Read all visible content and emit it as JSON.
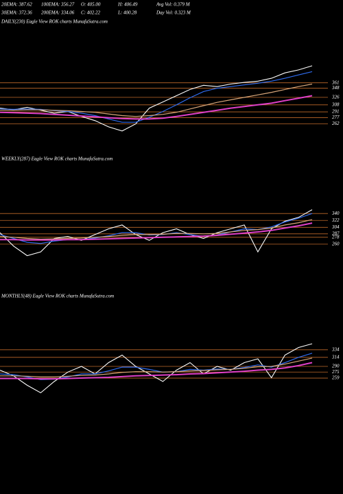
{
  "header": {
    "stats": [
      [
        "20EMA: 387.62",
        "100EMA: 356.27",
        "O: 405.00",
        "H: 406.49",
        "Avg Vol: 0.379 M"
      ],
      [
        "30EMA: 372.36",
        "200EMA: 334.06",
        "C: 402.22",
        "L: 400.28",
        "Day Vol: 0.323 M"
      ]
    ]
  },
  "chart_data": [
    {
      "type": "line",
      "title": "DAILY(230) Eagle  View  ROK charts MunafaSutra.com",
      "ylim": [
        230,
        420
      ],
      "yticks": [
        361,
        348,
        326,
        308,
        291,
        277,
        262
      ],
      "tick_color": "#c06a2a",
      "series": [
        {
          "color": "#ffffff",
          "values": [
            300,
            296,
            302,
            295,
            288,
            292,
            280,
            270,
            255,
            245,
            262,
            300,
            315,
            330,
            345,
            355,
            352,
            358,
            362,
            365,
            372,
            385,
            392,
            402
          ]
        },
        {
          "color": "#2f6cf0",
          "values": [
            298,
            297,
            298,
            297,
            294,
            292,
            288,
            282,
            274,
            266,
            266,
            278,
            292,
            308,
            325,
            340,
            348,
            352,
            356,
            360,
            365,
            372,
            380,
            388
          ]
        },
        {
          "color": "#d9a77a",
          "values": [
            295,
            295,
            296,
            296,
            295,
            294,
            292,
            290,
            286,
            282,
            280,
            282,
            285,
            290,
            298,
            306,
            314,
            320,
            326,
            332,
            338,
            345,
            352,
            358
          ]
        },
        {
          "color": "#e040c8",
          "values": [
            290,
            289,
            288,
            287,
            285,
            283,
            281,
            279,
            277,
            275,
            274,
            274,
            276,
            280,
            285,
            290,
            295,
            300,
            304,
            308,
            312,
            318,
            324,
            330
          ]
        }
      ]
    },
    {
      "type": "line",
      "title": "WEEKLY(287) Eagle  View  ROK charts MunafaSutra.com",
      "ylim": [
        190,
        360
      ],
      "yticks": [
        340,
        322,
        304,
        287,
        278,
        260
      ],
      "tick_color": "#c06a2a",
      "series": [
        {
          "color": "#ffffff",
          "values": [
            290,
            255,
            230,
            240,
            275,
            280,
            270,
            285,
            300,
            310,
            285,
            270,
            290,
            300,
            285,
            275,
            290,
            300,
            310,
            240,
            300,
            320,
            330,
            350
          ]
        },
        {
          "color": "#2f6cf0",
          "values": [
            285,
            275,
            265,
            262,
            268,
            272,
            272,
            276,
            282,
            290,
            290,
            284,
            285,
            290,
            285,
            280,
            284,
            292,
            300,
            298,
            305,
            318,
            328,
            340
          ]
        },
        {
          "color": "#d9a77a",
          "values": [
            280,
            278,
            275,
            273,
            274,
            275,
            276,
            278,
            280,
            283,
            285,
            285,
            286,
            288,
            288,
            287,
            288,
            292,
            296,
            298,
            302,
            310,
            316,
            324
          ]
        },
        {
          "color": "#e040c8",
          "values": [
            272,
            272,
            271,
            271,
            271,
            272,
            272,
            273,
            274,
            275,
            276,
            277,
            278,
            279,
            280,
            281,
            283,
            286,
            289,
            292,
            296,
            302,
            308,
            315
          ]
        }
      ]
    },
    {
      "type": "line",
      "title": "MONTHLY(48) Eagle  View  ROK charts MunafaSutra.com",
      "ylim": [
        170,
        370
      ],
      "yticks": [
        334,
        314,
        290,
        275,
        259
      ],
      "tick_color": "#c06a2a",
      "series": [
        {
          "color": "#ffffff",
          "values": [
            280,
            265,
            240,
            220,
            250,
            275,
            290,
            270,
            300,
            320,
            290,
            270,
            250,
            280,
            300,
            270,
            290,
            280,
            300,
            310,
            260,
            320,
            340,
            350
          ]
        },
        {
          "color": "#2f6cf0",
          "values": [
            270,
            268,
            262,
            255,
            256,
            262,
            270,
            270,
            278,
            288,
            288,
            282,
            275,
            276,
            282,
            280,
            283,
            282,
            287,
            294,
            288,
            300,
            314,
            325
          ]
        },
        {
          "color": "#d9a77a",
          "values": [
            265,
            265,
            264,
            262,
            262,
            264,
            266,
            267,
            270,
            274,
            276,
            276,
            275,
            276,
            278,
            279,
            281,
            282,
            285,
            289,
            290,
            296,
            304,
            312
          ]
        },
        {
          "color": "#e040c8",
          "values": [
            258,
            258,
            258,
            257,
            257,
            258,
            259,
            260,
            261,
            263,
            265,
            266,
            267,
            268,
            270,
            271,
            273,
            275,
            277,
            280,
            282,
            286,
            292,
            300
          ]
        }
      ]
    }
  ]
}
